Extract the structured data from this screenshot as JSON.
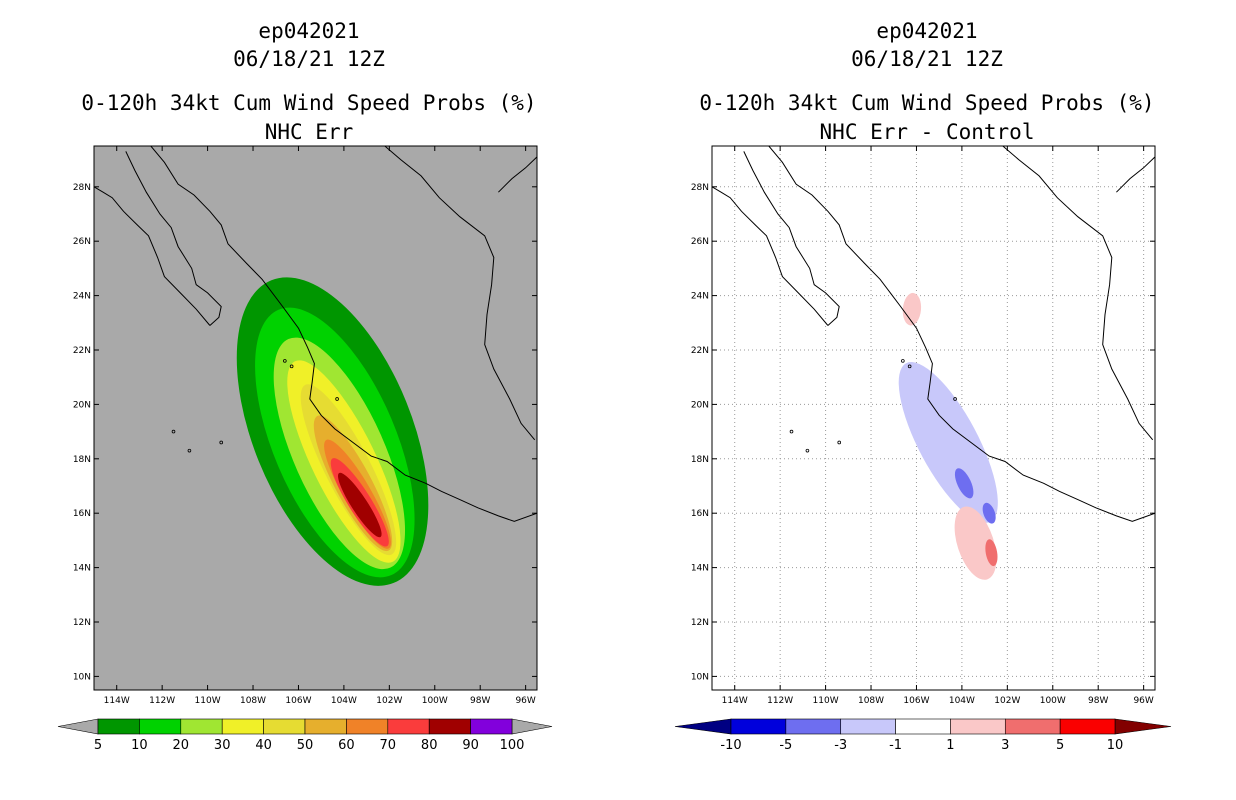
{
  "chart_data": [
    {
      "type": "heatmap",
      "title_lines": [
        "ep042021",
        "06/18/21 12Z",
        "0-120h 34kt Cum Wind Speed Probs (%)",
        "NHC Err"
      ],
      "lon_ticks": [
        "114W",
        "112W",
        "110W",
        "108W",
        "106W",
        "104W",
        "102W",
        "100W",
        "98W",
        "96W"
      ],
      "lat_ticks": [
        "28N",
        "26N",
        "24N",
        "22N",
        "20N",
        "18N",
        "16N",
        "14N",
        "12N",
        "10N"
      ],
      "lon_range": [
        -115,
        -95.5
      ],
      "lat_range": [
        9.5,
        29.5
      ],
      "background": "#a9a9a9",
      "colorbar": {
        "labels": [
          "5",
          "10",
          "20",
          "30",
          "40",
          "50",
          "60",
          "70",
          "80",
          "90",
          "100"
        ],
        "colors": [
          "#009600",
          "#00d200",
          "#a0e632",
          "#f0f028",
          "#e6dc32",
          "#e6af2d",
          "#f08228",
          "#fa3c3c",
          "#a00000",
          "#8200dc"
        ],
        "below_color": "#a9a9a9",
        "above_color": "#a9a9a9"
      },
      "contours": [
        {
          "level": 5,
          "color": "#009600",
          "center": [
            -104.5,
            19.0
          ],
          "halfwidth": 3.5,
          "length": 12.0,
          "angle_deg": -22
        },
        {
          "level": 10,
          "color": "#00d200",
          "center": [
            -104.4,
            18.6
          ],
          "halfwidth": 2.7,
          "length": 10.6,
          "angle_deg": -23
        },
        {
          "level": 20,
          "color": "#a0e632",
          "center": [
            -104.2,
            18.2
          ],
          "halfwidth": 2.0,
          "length": 9.2,
          "angle_deg": -24
        },
        {
          "level": 30,
          "color": "#f0f028",
          "center": [
            -104.0,
            17.9
          ],
          "halfwidth": 1.4,
          "length": 8.2,
          "angle_deg": -26
        },
        {
          "level": 40,
          "color": "#e6dc32",
          "center": [
            -103.8,
            17.6
          ],
          "halfwidth": 1.0,
          "length": 7.0,
          "angle_deg": -27
        },
        {
          "level": 50,
          "color": "#e6af2d",
          "center": [
            -103.6,
            17.1
          ],
          "halfwidth": 0.8,
          "length": 5.6,
          "angle_deg": -28
        },
        {
          "level": 60,
          "color": "#f08228",
          "center": [
            -103.4,
            16.7
          ],
          "halfwidth": 0.6,
          "length": 4.6,
          "angle_deg": -30
        },
        {
          "level": 70,
          "color": "#fa3c3c",
          "center": [
            -103.3,
            16.4
          ],
          "halfwidth": 0.5,
          "length": 3.8,
          "angle_deg": -32
        },
        {
          "level": 80,
          "color": "#a00000",
          "center": [
            -103.3,
            16.3
          ],
          "halfwidth": 0.35,
          "length": 2.8,
          "angle_deg": -33
        }
      ]
    },
    {
      "type": "heatmap",
      "title_lines": [
        "ep042021",
        "06/18/21 12Z",
        "0-120h 34kt Cum Wind Speed Probs (%)",
        "NHC Err - Control"
      ],
      "lon_ticks": [
        "114W",
        "112W",
        "110W",
        "108W",
        "106W",
        "104W",
        "102W",
        "100W",
        "98W",
        "96W"
      ],
      "lat_ticks": [
        "28N",
        "26N",
        "24N",
        "22N",
        "20N",
        "18N",
        "16N",
        "14N",
        "12N",
        "10N"
      ],
      "lon_range": [
        -115,
        -95.5
      ],
      "lat_range": [
        9.5,
        29.5
      ],
      "background": "#ffffff",
      "gridlines": true,
      "colorbar": {
        "labels": [
          "-10",
          "-5",
          "-3",
          "-1",
          "1",
          "3",
          "5",
          "10"
        ],
        "colors": [
          "#0000dc",
          "#6e6ef0",
          "#c8c8fa",
          "#ffffff",
          "#fac8c8",
          "#f06e6e",
          "#fa0000"
        ],
        "below_color": "#000082",
        "above_color": "#820000"
      },
      "contours": [
        {
          "level": -1,
          "color": "#c8c8fa",
          "center": [
            -104.6,
            18.6
          ],
          "halfwidth": 1.3,
          "length": 6.6,
          "angle_deg": -28
        },
        {
          "level": -3,
          "color": "#6e6ef0",
          "center": [
            -103.9,
            17.1
          ],
          "halfwidth": 0.3,
          "length": 1.2,
          "angle_deg": -25
        },
        {
          "level": -3,
          "color": "#6e6ef0",
          "center": [
            -102.8,
            16.0
          ],
          "halfwidth": 0.25,
          "length": 0.8,
          "angle_deg": -20
        },
        {
          "level": 1,
          "color": "#fac8c8",
          "center": [
            -103.4,
            14.9
          ],
          "halfwidth": 0.8,
          "length": 2.8,
          "angle_deg": -18
        },
        {
          "level": 1,
          "color": "#fac8c8",
          "center": [
            -106.2,
            23.5
          ],
          "halfwidth": 0.4,
          "length": 1.2,
          "angle_deg": 5
        },
        {
          "level": 3,
          "color": "#f06e6e",
          "center": [
            -102.7,
            14.55
          ],
          "halfwidth": 0.25,
          "length": 1.0,
          "angle_deg": -10
        }
      ]
    }
  ]
}
